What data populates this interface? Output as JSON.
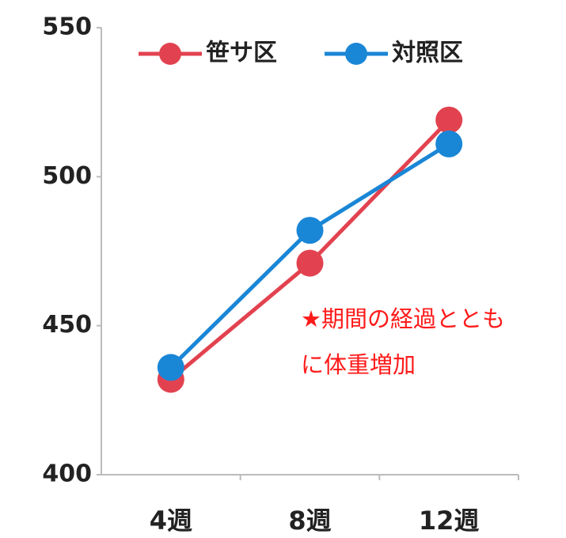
{
  "chart_data": {
    "type": "line",
    "categories": [
      "4週",
      "8週",
      "12週"
    ],
    "series": [
      {
        "name": "笹サ区",
        "color": "#e2424f",
        "values": [
          432,
          471,
          519
        ]
      },
      {
        "name": "対照区",
        "color": "#1a86d6",
        "values": [
          436,
          482,
          511
        ]
      }
    ],
    "ylim": [
      400,
      550
    ],
    "yticks": [
      400,
      450,
      500,
      550
    ],
    "annotation": [
      "★期間の経過ととも",
      "に体重増加"
    ]
  }
}
